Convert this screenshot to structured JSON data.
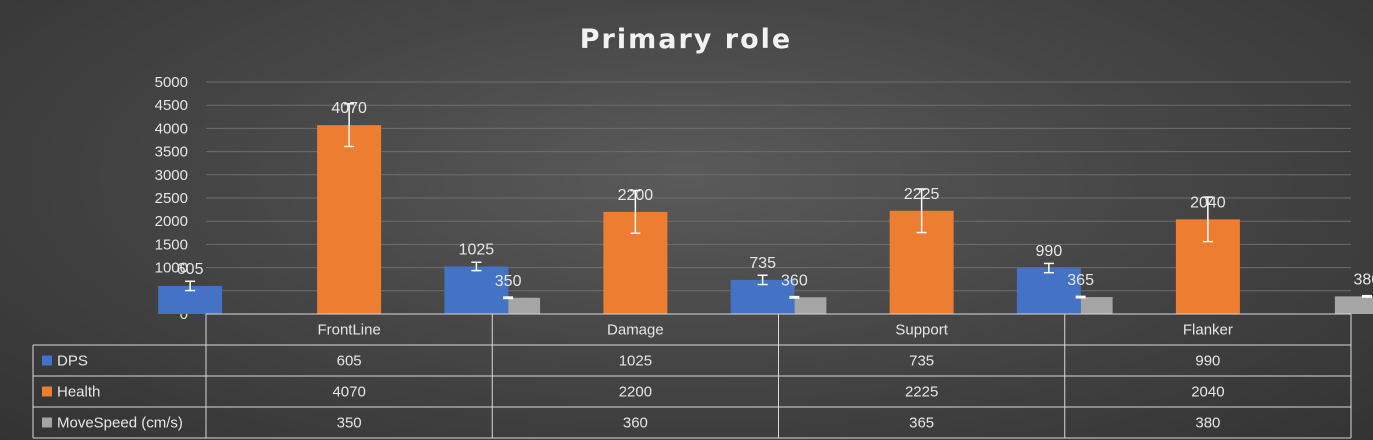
{
  "chart_data": {
    "type": "bar",
    "title": "Primary role",
    "categories": [
      "FrontLine",
      "Damage",
      "Support",
      "Flanker"
    ],
    "series": [
      {
        "name": "DPS",
        "values": [
          605,
          1025,
          735,
          990
        ],
        "error": [
          100,
          90,
          100,
          100
        ],
        "color": "#4472c4"
      },
      {
        "name": "Health",
        "values": [
          4070,
          2200,
          2225,
          2040
        ],
        "error": [
          460,
          460,
          470,
          480
        ],
        "color": "#ed7d31"
      },
      {
        "name": "MoveSpeed (cm/s)",
        "values": [
          350,
          360,
          365,
          380
        ],
        "error": [
          15,
          15,
          15,
          15
        ],
        "color": "#a5a5a5"
      }
    ],
    "y_ticks": [
      0,
      500,
      1000,
      1500,
      2000,
      2500,
      3000,
      3500,
      4000,
      4500,
      5000
    ],
    "ylim": [
      0,
      5000
    ],
    "grid": true,
    "data_labels": true,
    "legend": "data-table"
  }
}
